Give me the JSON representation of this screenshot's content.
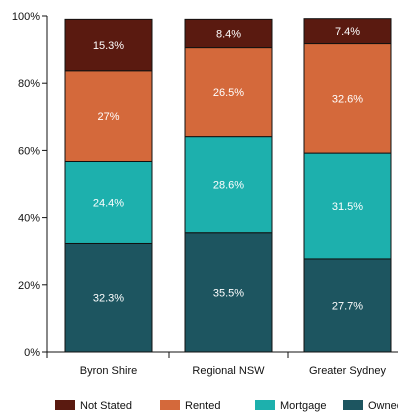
{
  "chart_data": {
    "type": "bar",
    "stacked": true,
    "categories": [
      "Byron Shire",
      "Regional NSW",
      "Greater Sydney"
    ],
    "series": [
      {
        "name": "Owned",
        "values": [
          32.3,
          35.5,
          27.7
        ],
        "labels": [
          "32.3%",
          "35.5%",
          "27.7%"
        ],
        "color": "#1d5560"
      },
      {
        "name": "Mortgage",
        "values": [
          24.4,
          28.6,
          31.5
        ],
        "labels": [
          "24.4%",
          "28.6%",
          "31.5%"
        ],
        "color": "#1db0ad"
      },
      {
        "name": "Rented",
        "values": [
          27,
          26.5,
          32.6
        ],
        "labels": [
          "27%",
          "26.5%",
          "32.6%"
        ],
        "color": "#d4693b"
      },
      {
        "name": "Not Stated",
        "values": [
          15.3,
          8.4,
          7.4
        ],
        "labels": [
          "15.3%",
          "8.4%",
          "7.4%"
        ],
        "color": "#5a1a10"
      }
    ],
    "legend_order": [
      "Not Stated",
      "Rented",
      "Mortgage",
      "Owned"
    ],
    "ylim": [
      0,
      100
    ],
    "y_ticks": [
      "0%",
      "20%",
      "40%",
      "60%",
      "80%",
      "100%"
    ],
    "y_tick_values": [
      0,
      20,
      40,
      60,
      80,
      100
    ],
    "legend_position": "bottom",
    "grid": false,
    "title": "",
    "xlabel": "",
    "ylabel": ""
  }
}
